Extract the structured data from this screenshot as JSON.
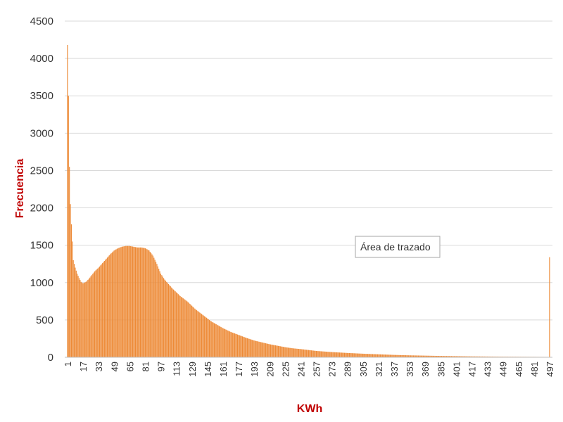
{
  "chart_data": {
    "type": "bar",
    "xlabel": "KWh",
    "ylabel": "Frecuencia",
    "ylim": [
      0,
      4500
    ],
    "yticks": [
      0,
      500,
      1000,
      1500,
      2000,
      2500,
      3000,
      3500,
      4000,
      4500
    ],
    "xlim": [
      1,
      497
    ],
    "xticks": [
      1,
      17,
      33,
      49,
      65,
      81,
      97,
      113,
      129,
      145,
      161,
      177,
      193,
      209,
      225,
      241,
      257,
      273,
      289,
      305,
      321,
      337,
      353,
      369,
      385,
      401,
      417,
      433,
      449,
      465,
      481,
      497
    ],
    "grid": true,
    "color": "#ed8a36",
    "series": [
      {
        "x": [
          1,
          2,
          3,
          4,
          5,
          6,
          7,
          9,
          11,
          13,
          15,
          17,
          20,
          23,
          26,
          29,
          33,
          37,
          41,
          45,
          49,
          53,
          57,
          61,
          65,
          69,
          73,
          77,
          81,
          85,
          89,
          93,
          97,
          101,
          105,
          109,
          113,
          117,
          121,
          125,
          129,
          133,
          137,
          141,
          145,
          149,
          153,
          157,
          161,
          169,
          177,
          185,
          193,
          201,
          209,
          217,
          225,
          233,
          241,
          257,
          273,
          289,
          305,
          321,
          337,
          353,
          369,
          385,
          401,
          417,
          433,
          449,
          465,
          481,
          495,
          496,
          497
        ],
        "values": [
          4180,
          3500,
          2550,
          2050,
          1780,
          1550,
          1300,
          1200,
          1120,
          1060,
          1010,
          990,
          1010,
          1050,
          1100,
          1150,
          1200,
          1260,
          1320,
          1380,
          1430,
          1460,
          1480,
          1490,
          1490,
          1480,
          1470,
          1470,
          1460,
          1430,
          1360,
          1250,
          1120,
          1040,
          980,
          920,
          870,
          820,
          780,
          740,
          690,
          640,
          600,
          560,
          520,
          480,
          450,
          420,
          390,
          340,
          300,
          260,
          225,
          200,
          175,
          155,
          135,
          120,
          110,
          85,
          70,
          58,
          48,
          40,
          32,
          26,
          22,
          18,
          15,
          12,
          10,
          8,
          7,
          6,
          5,
          5,
          1340
        ]
      }
    ]
  },
  "tooltip": {
    "text": "Área de trazado"
  }
}
